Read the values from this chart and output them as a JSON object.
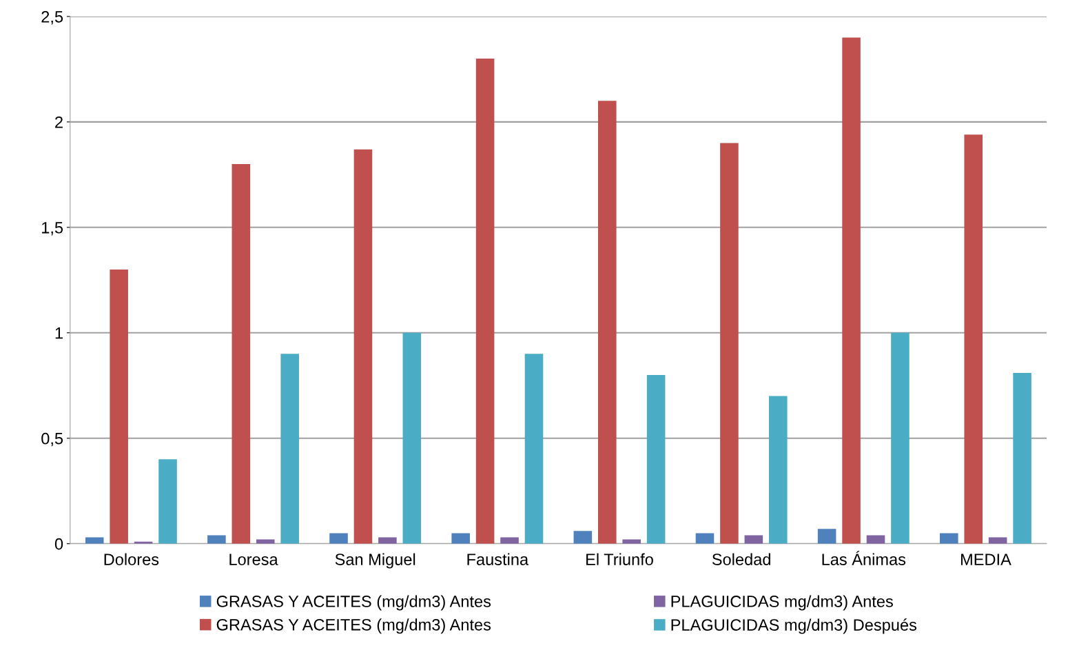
{
  "chart_data": {
    "type": "bar",
    "categories": [
      "Dolores",
      "Loresa",
      "San Miguel",
      "Faustina",
      "El Triunfo",
      "Soledad",
      "Las Ánimas",
      "MEDIA"
    ],
    "series": [
      {
        "name": "GRASAS Y ACEITES (mg/dm3) Antes",
        "color": "#4f81bd",
        "values": [
          0.03,
          0.04,
          0.05,
          0.05,
          0.06,
          0.05,
          0.07,
          0.05
        ]
      },
      {
        "name": "GRASAS Y ACEITES (mg/dm3) Antes",
        "color": "#c0504d",
        "values": [
          1.3,
          1.8,
          1.87,
          2.3,
          2.1,
          1.9,
          2.4,
          1.94
        ]
      },
      {
        "name": "PLAGUICIDAS mg/dm3) Antes",
        "color": "#8064a2",
        "values": [
          0.01,
          0.02,
          0.03,
          0.03,
          0.02,
          0.04,
          0.04,
          0.03
        ]
      },
      {
        "name": "PLAGUICIDAS mg/dm3) Después",
        "color": "#4bacc6",
        "values": [
          0.4,
          0.9,
          1.0,
          0.9,
          0.8,
          0.7,
          1.0,
          0.81
        ]
      }
    ],
    "ylim": [
      0,
      2.5
    ],
    "yticks": [
      0,
      {
        "value": 0.5,
        "label": "0,5"
      },
      1,
      {
        "value": 1.5,
        "label": "1,5"
      },
      2,
      {
        "value": 2.5,
        "label": "2,5"
      }
    ],
    "grid": "y",
    "legend": "bottom"
  }
}
